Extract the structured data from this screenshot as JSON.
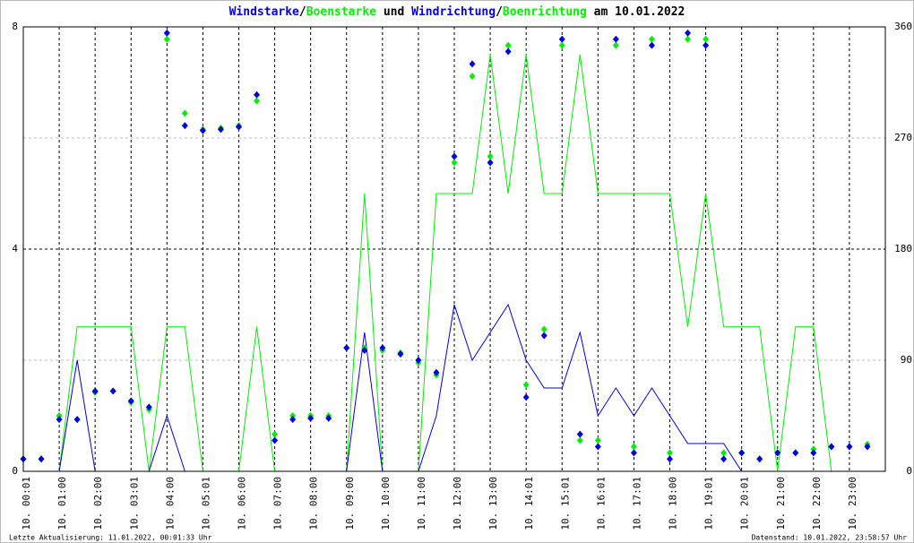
{
  "chart_data": {
    "type": "line",
    "title": [
      "Windstarke",
      "/",
      "Boenstarke",
      " und ",
      "Windrichtung",
      "/",
      "Boenrichtung",
      " am 10.01.2022"
    ],
    "footer_left": "Letzte Aktualisierung: 11.01.2022, 00:01:33 Uhr",
    "footer_right": "Datenstand: 10.01.2022, 23:58:57 Uhr",
    "xlim": [
      0,
      24
    ],
    "xticks": [
      {
        "value": 0,
        "label": "10. 00:01"
      },
      {
        "value": 1,
        "label": "10. 01:00"
      },
      {
        "value": 2,
        "label": "10. 02:00"
      },
      {
        "value": 3,
        "label": "10. 03:01"
      },
      {
        "value": 4,
        "label": "10. 04:00"
      },
      {
        "value": 5,
        "label": "10. 05:01"
      },
      {
        "value": 6,
        "label": "10. 06:00"
      },
      {
        "value": 7,
        "label": "10. 07:00"
      },
      {
        "value": 8,
        "label": "10. 08:00"
      },
      {
        "value": 9,
        "label": "10. 09:00"
      },
      {
        "value": 10,
        "label": "10. 10:00"
      },
      {
        "value": 11,
        "label": "10. 11:00"
      },
      {
        "value": 12,
        "label": "10. 12:00"
      },
      {
        "value": 13,
        "label": "10. 13:00"
      },
      {
        "value": 14,
        "label": "10. 14:01"
      },
      {
        "value": 15,
        "label": "10. 15:01"
      },
      {
        "value": 16,
        "label": "10. 16:01"
      },
      {
        "value": 17,
        "label": "10. 17:01"
      },
      {
        "value": 18,
        "label": "10. 18:00"
      },
      {
        "value": 19,
        "label": "10. 19:01"
      },
      {
        "value": 20,
        "label": "10. 20:01"
      },
      {
        "value": 21,
        "label": "10. 21:00"
      },
      {
        "value": 22,
        "label": "10. 22:00"
      },
      {
        "value": 23,
        "label": "10. 23:00"
      }
    ],
    "ylim": [
      0,
      8
    ],
    "yticks": [
      0,
      4,
      8
    ],
    "y2lim": [
      0,
      360
    ],
    "y2ticks": [
      0,
      90,
      180,
      270,
      360
    ],
    "grid": true,
    "x": [
      0,
      0.5,
      1,
      1.5,
      2,
      2.5,
      3,
      3.5,
      4,
      4.5,
      5,
      5.5,
      6,
      6.5,
      7,
      7.5,
      8,
      8.5,
      9,
      9.5,
      10,
      10.5,
      11,
      11.5,
      12,
      12.5,
      13,
      13.5,
      14,
      14.5,
      15,
      15.5,
      16,
      16.5,
      17,
      17.5,
      18,
      18.5,
      19,
      19.5,
      20,
      20.5,
      21,
      21.5,
      22,
      22.5,
      23,
      23.5
    ],
    "series": [
      {
        "name": "Boenstarke",
        "color": "#00ee00",
        "kind": "line",
        "values": [
          0,
          0,
          0,
          2.6,
          2.6,
          2.6,
          2.6,
          0,
          2.6,
          2.6,
          0,
          0,
          0,
          2.6,
          0,
          0,
          0,
          0,
          0,
          5,
          0,
          0,
          0,
          5,
          5,
          5,
          7.5,
          5,
          7.5,
          5,
          5,
          7.5,
          5,
          5,
          5,
          5,
          5,
          2.6,
          5,
          2.6,
          2.6,
          2.6,
          0,
          2.6,
          2.6,
          0,
          0,
          0
        ]
      },
      {
        "name": "Windstarke",
        "color": "#0000dd",
        "kind": "line",
        "values": [
          0,
          0,
          0,
          2,
          0,
          0,
          0,
          0,
          1,
          0,
          0,
          0,
          0,
          0,
          0,
          0,
          0,
          0,
          0,
          2.5,
          0,
          0,
          0,
          1,
          3,
          2,
          2.5,
          3,
          2,
          1.5,
          1.5,
          2.5,
          1,
          1.5,
          1,
          1.5,
          1,
          0.5,
          0.5,
          0.5,
          0,
          0,
          0,
          0,
          0,
          0,
          0,
          0
        ]
      },
      {
        "name": "Boenrichtung",
        "color": "#00ee00",
        "kind": "marker",
        "axis": "y2",
        "values": [
          10,
          10,
          45,
          42,
          64,
          65,
          56,
          50,
          350,
          290,
          277,
          278,
          280,
          300,
          30,
          45,
          45,
          45,
          100,
          100,
          98,
          96,
          88,
          78,
          250,
          320,
          255,
          345,
          70,
          115,
          345,
          25,
          25,
          345,
          20,
          350,
          15,
          350,
          350,
          15,
          15,
          10,
          15,
          15,
          18,
          20,
          20,
          22
        ]
      },
      {
        "name": "Windrichtung",
        "color": "#0000dd",
        "kind": "marker",
        "axis": "y2",
        "values": [
          10,
          10,
          42,
          42,
          65,
          65,
          57,
          52,
          355,
          280,
          276,
          277,
          279,
          305,
          25,
          42,
          43,
          43,
          100,
          98,
          100,
          95,
          90,
          80,
          255,
          330,
          250,
          340,
          60,
          110,
          350,
          30,
          20,
          350,
          15,
          345,
          10,
          355,
          345,
          10,
          15,
          10,
          15,
          15,
          15,
          20,
          20,
          20
        ]
      }
    ]
  }
}
